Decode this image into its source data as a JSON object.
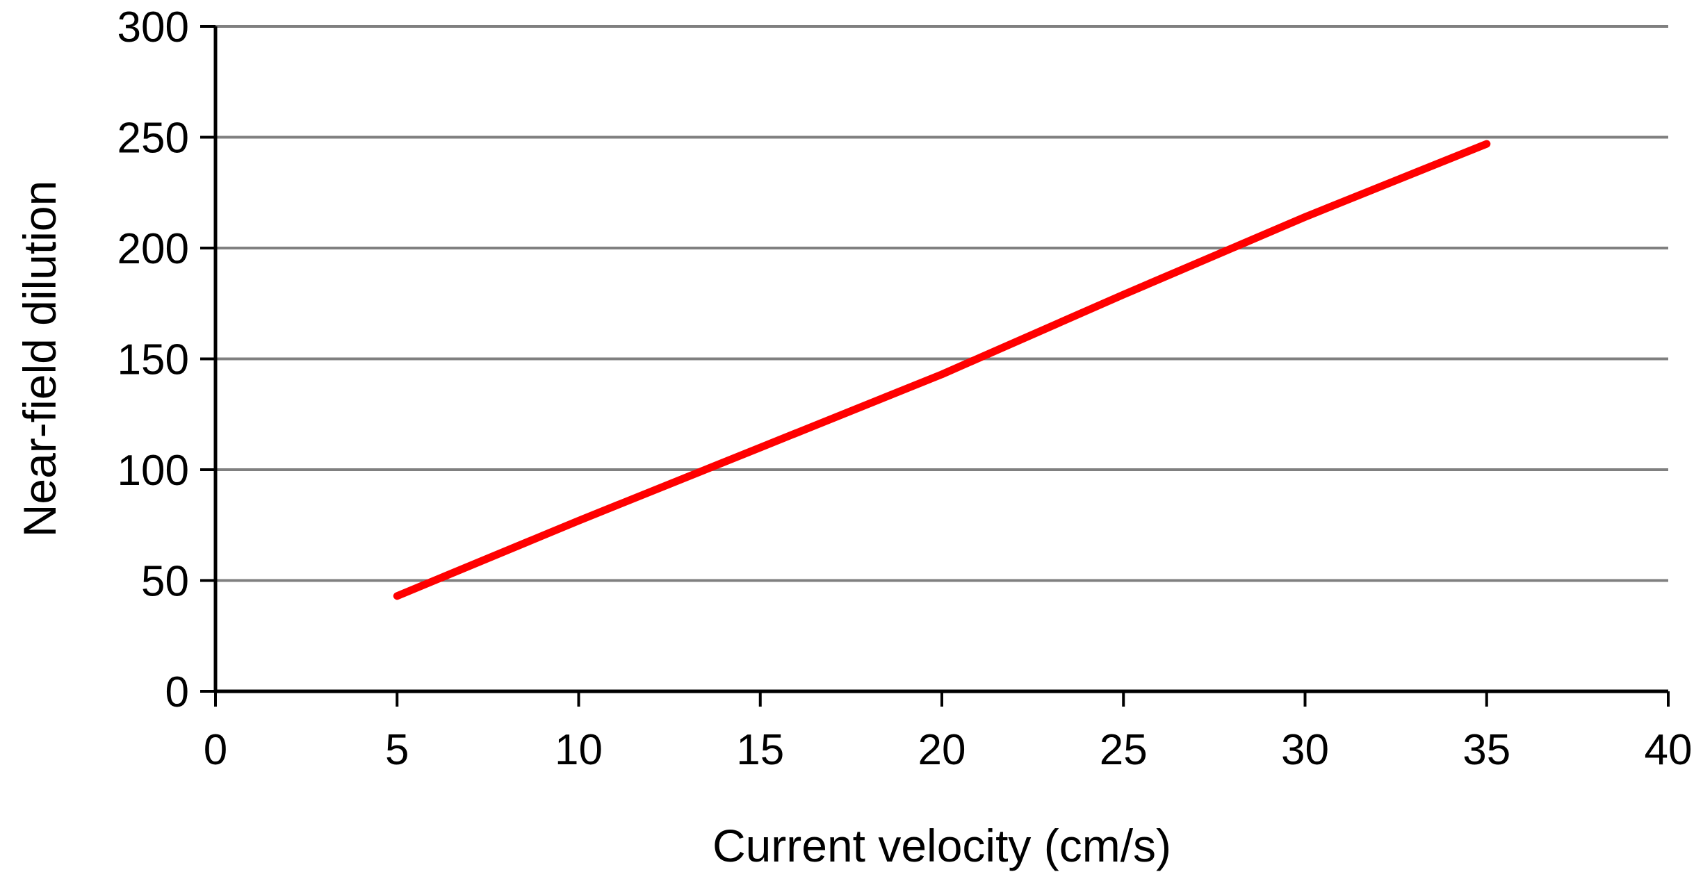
{
  "chart_data": {
    "type": "line",
    "title": "",
    "xlabel": "Current velocity (cm/s)",
    "ylabel": "Near-field dilution",
    "xlim": [
      0,
      40
    ],
    "ylim": [
      0,
      300
    ],
    "xticks": [
      0,
      5,
      10,
      15,
      20,
      25,
      30,
      35,
      40
    ],
    "yticks": [
      0,
      50,
      100,
      150,
      200,
      250,
      300
    ],
    "grid": "horizontal",
    "legend": "none",
    "series": [
      {
        "name": "Near-field dilution",
        "color": "#ff0000",
        "x": [
          5,
          10,
          15,
          20,
          25,
          30,
          35
        ],
        "y": [
          43,
          77,
          110,
          143,
          179,
          214,
          247
        ]
      }
    ]
  },
  "colors": {
    "gridline": "#808080",
    "axis": "#000000",
    "series": "#ff0000"
  }
}
